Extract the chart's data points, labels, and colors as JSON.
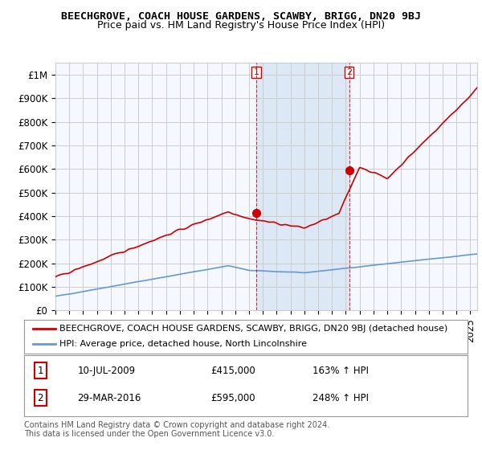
{
  "title": "BEECHGROVE, COACH HOUSE GARDENS, SCAWBY, BRIGG, DN20 9BJ",
  "subtitle": "Price paid vs. HM Land Registry's House Price Index (HPI)",
  "ylabel_ticks": [
    "£0",
    "£100K",
    "£200K",
    "£300K",
    "£400K",
    "£500K",
    "£600K",
    "£700K",
    "£800K",
    "£900K",
    "£1M"
  ],
  "ytick_values": [
    0,
    100000,
    200000,
    300000,
    400000,
    500000,
    600000,
    700000,
    800000,
    900000,
    1000000
  ],
  "ylim": [
    0,
    1050000
  ],
  "xlim_start": 1995.0,
  "xlim_end": 2025.5,
  "marker1_x": 2009.52,
  "marker1_y": 415000,
  "marker1_label": "1",
  "marker2_x": 2016.24,
  "marker2_y": 595000,
  "marker2_label": "2",
  "vline1_x": 2009.52,
  "vline2_x": 2016.24,
  "legend_line1": "BEECHGROVE, COACH HOUSE GARDENS, SCAWBY, BRIGG, DN20 9BJ (detached house)",
  "legend_line2": "HPI: Average price, detached house, North Lincolnshire",
  "table_row1": [
    "1",
    "10-JUL-2009",
    "£415,000",
    "163% ↑ HPI"
  ],
  "table_row2": [
    "2",
    "29-MAR-2016",
    "£595,000",
    "248% ↑ HPI"
  ],
  "footer": "Contains HM Land Registry data © Crown copyright and database right 2024.\nThis data is licensed under the Open Government Licence v3.0.",
  "red_color": "#cc0000",
  "blue_color": "#6699cc",
  "vline_color": "#cc0000",
  "grid_color": "#cccccc",
  "bg_color": "#ffffff",
  "plot_bg_color": "#f5f8ff",
  "shaded_region_color": "#dce8f5",
  "title_fontsize": 9.5,
  "subtitle_fontsize": 9,
  "tick_fontsize": 8.5,
  "legend_fontsize": 8,
  "table_fontsize": 8.5,
  "footer_fontsize": 7
}
